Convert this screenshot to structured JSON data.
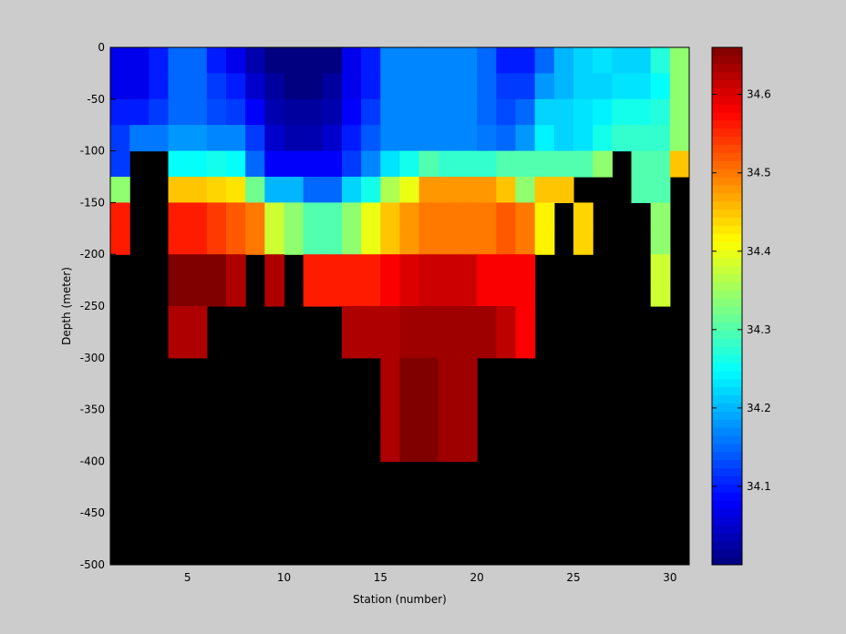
{
  "chart_data": {
    "type": "heatmap",
    "title": "",
    "xlabel": "Station (number)",
    "ylabel": "Depth (meter)",
    "x_ticks": [
      5,
      10,
      15,
      20,
      25,
      30
    ],
    "y_ticks": [
      0,
      -50,
      -100,
      -150,
      -200,
      -250,
      -300,
      -350,
      -400,
      -450,
      -500
    ],
    "xlim": [
      1,
      31
    ],
    "ylim": [
      -500,
      0
    ],
    "stations": [
      1,
      2,
      3,
      4,
      5,
      6,
      7,
      8,
      9,
      10,
      11,
      12,
      13,
      14,
      15,
      16,
      17,
      18,
      19,
      20,
      21,
      22,
      23,
      24,
      25,
      26,
      27,
      28,
      29,
      30
    ],
    "depth_bins": [
      0,
      25,
      50,
      75,
      100,
      125,
      150,
      175,
      200,
      225,
      250,
      275,
      300,
      325,
      350,
      375,
      400
    ],
    "colorbar": {
      "min": 34.0,
      "max": 34.66,
      "ticks": [
        34.1,
        34.2,
        34.3,
        34.4,
        34.5,
        34.6
      ],
      "colormap": "jet-like"
    },
    "no_data_color": "#000000",
    "values": [
      [
        34.07,
        34.07,
        34.1,
        34.15,
        34.15,
        34.1,
        34.07,
        34.03,
        34.0,
        34.0,
        34.0,
        34.0,
        34.07,
        34.1,
        34.17,
        34.17,
        34.17,
        34.17,
        34.17,
        34.15,
        34.1,
        34.1,
        34.15,
        34.2,
        34.22,
        34.23,
        34.22,
        34.22,
        34.27,
        34.34
      ],
      [
        34.07,
        34.07,
        34.1,
        34.15,
        34.15,
        34.12,
        34.1,
        34.05,
        34.02,
        34.0,
        34.0,
        34.02,
        34.07,
        34.1,
        34.17,
        34.17,
        34.17,
        34.17,
        34.17,
        34.15,
        34.12,
        34.12,
        34.18,
        34.2,
        34.22,
        34.22,
        34.23,
        34.23,
        34.25,
        34.34
      ],
      [
        34.1,
        34.1,
        34.12,
        34.15,
        34.15,
        34.13,
        34.12,
        34.08,
        34.03,
        34.02,
        34.02,
        34.03,
        34.08,
        34.12,
        34.17,
        34.17,
        34.17,
        34.17,
        34.17,
        34.15,
        34.13,
        34.15,
        34.22,
        34.22,
        34.23,
        34.24,
        34.26,
        34.26,
        34.27,
        34.34
      ],
      [
        34.12,
        34.16,
        34.16,
        34.18,
        34.18,
        34.17,
        34.17,
        34.12,
        34.05,
        34.03,
        34.03,
        34.05,
        34.1,
        34.14,
        34.17,
        34.17,
        34.17,
        34.17,
        34.17,
        34.16,
        34.15,
        34.18,
        34.24,
        34.22,
        34.23,
        34.26,
        34.28,
        34.28,
        34.28,
        34.34
      ],
      [
        34.12,
        null,
        null,
        34.25,
        34.25,
        34.26,
        34.25,
        34.15,
        34.08,
        34.08,
        34.08,
        34.08,
        34.12,
        34.17,
        34.23,
        34.26,
        34.3,
        34.28,
        34.28,
        34.28,
        34.3,
        34.3,
        34.3,
        34.3,
        34.3,
        34.34,
        null,
        34.3,
        34.3,
        34.45
      ],
      [
        34.34,
        null,
        null,
        34.45,
        34.45,
        34.44,
        34.43,
        34.32,
        34.2,
        34.2,
        34.15,
        34.15,
        34.22,
        34.26,
        34.36,
        34.4,
        34.48,
        34.48,
        34.48,
        34.48,
        34.45,
        34.34,
        34.45,
        34.45,
        null,
        null,
        null,
        34.3,
        34.3,
        null
      ],
      [
        34.56,
        null,
        null,
        34.56,
        34.56,
        34.54,
        34.52,
        34.5,
        34.38,
        34.34,
        34.3,
        34.3,
        34.34,
        34.4,
        34.45,
        34.48,
        34.5,
        34.5,
        34.5,
        34.5,
        34.52,
        34.5,
        34.42,
        null,
        34.44,
        null,
        null,
        null,
        34.34,
        null
      ],
      [
        34.56,
        null,
        null,
        34.56,
        34.56,
        34.54,
        34.52,
        34.5,
        34.38,
        34.34,
        34.3,
        34.3,
        34.34,
        34.4,
        34.45,
        34.48,
        34.5,
        34.5,
        34.5,
        34.5,
        34.52,
        34.5,
        34.42,
        null,
        34.44,
        null,
        null,
        null,
        34.34,
        null
      ],
      [
        null,
        null,
        null,
        34.66,
        34.66,
        34.66,
        34.63,
        null,
        34.63,
        null,
        34.56,
        34.56,
        34.56,
        34.56,
        34.58,
        34.6,
        34.61,
        34.61,
        34.61,
        34.58,
        34.58,
        34.58,
        null,
        null,
        null,
        null,
        null,
        null,
        34.38,
        null
      ],
      [
        null,
        null,
        null,
        34.66,
        34.66,
        34.66,
        34.63,
        null,
        34.63,
        null,
        34.56,
        34.56,
        34.56,
        34.56,
        34.58,
        34.6,
        34.61,
        34.61,
        34.61,
        34.58,
        34.58,
        34.58,
        null,
        null,
        null,
        null,
        null,
        null,
        34.38,
        null
      ],
      [
        null,
        null,
        null,
        34.63,
        34.63,
        null,
        null,
        null,
        null,
        null,
        null,
        null,
        34.63,
        34.63,
        34.63,
        34.64,
        34.64,
        34.64,
        34.64,
        34.64,
        34.62,
        34.58,
        null,
        null,
        null,
        null,
        null,
        null,
        null,
        null
      ],
      [
        null,
        null,
        null,
        34.63,
        34.63,
        null,
        null,
        null,
        null,
        null,
        null,
        null,
        34.63,
        34.63,
        34.63,
        34.64,
        34.64,
        34.64,
        34.64,
        34.64,
        34.62,
        34.58,
        null,
        null,
        null,
        null,
        null,
        null,
        null,
        null
      ],
      [
        null,
        null,
        null,
        null,
        null,
        null,
        null,
        null,
        null,
        null,
        null,
        null,
        null,
        null,
        34.63,
        34.66,
        34.66,
        34.64,
        34.64,
        null,
        null,
        null,
        null,
        null,
        null,
        null,
        null,
        null,
        null,
        null
      ],
      [
        null,
        null,
        null,
        null,
        null,
        null,
        null,
        null,
        null,
        null,
        null,
        null,
        null,
        null,
        34.63,
        34.66,
        34.66,
        34.64,
        34.64,
        null,
        null,
        null,
        null,
        null,
        null,
        null,
        null,
        null,
        null,
        null
      ],
      [
        null,
        null,
        null,
        null,
        null,
        null,
        null,
        null,
        null,
        null,
        null,
        null,
        null,
        null,
        34.63,
        34.66,
        34.66,
        34.64,
        34.64,
        null,
        null,
        null,
        null,
        null,
        null,
        null,
        null,
        null,
        null,
        null
      ],
      [
        null,
        null,
        null,
        null,
        null,
        null,
        null,
        null,
        null,
        null,
        null,
        null,
        null,
        null,
        34.63,
        34.66,
        34.66,
        34.64,
        34.64,
        null,
        null,
        null,
        null,
        null,
        null,
        null,
        null,
        null,
        null,
        null
      ]
    ]
  }
}
